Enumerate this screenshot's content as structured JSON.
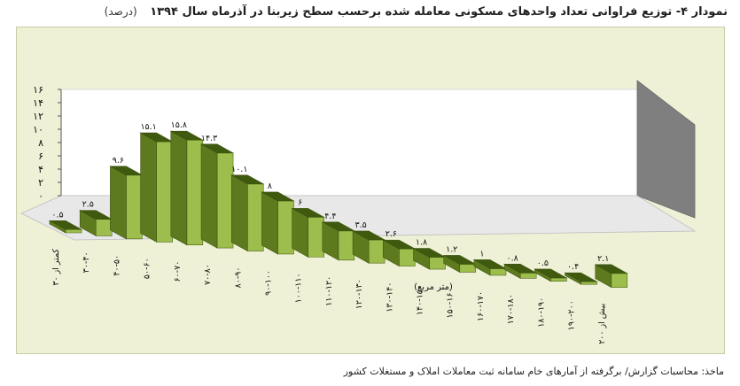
{
  "title": {
    "main": "نمودار ۴- توزیع فراوانی تعداد واحدهای مسکونی معامله شده برحسب سطح زیربنا در آذرماه سال ۱۳۹۴",
    "unit": "(درصد)"
  },
  "source": "ماخذ: محاسبات گزارش/ برگرفته از آمارهای خام سامانه ثبت معاملات املاک و مستغلات کشور",
  "chart_data": {
    "type": "bar",
    "title": "نمودار ۴- توزیع فراوانی تعداد واحدهای مسکونی معامله شده برحسب سطح زیربنا در آذرماه سال ۱۳۹۴",
    "xlabel": "(متر مربع)",
    "ylabel": "",
    "ylim": [
      0,
      16
    ],
    "yticks": [
      0,
      2,
      4,
      6,
      8,
      10,
      12,
      14,
      16
    ],
    "ytick_labels": [
      "۰",
      "۲",
      "۴",
      "۶",
      "۸",
      "۱۰",
      "۱۲",
      "۱۴",
      "۱۶"
    ],
    "grid": false,
    "categories": [
      "کمتر از ۳۰",
      "۳۰-۴۰",
      "۴۰-۵۰",
      "۵۰-۶۰",
      "۶۰-۷۰",
      "۷۰-۸۰",
      "۸۰-۹۰",
      "۹۰-۱۰۰",
      "۱۰۰-۱۱۰",
      "۱۱۰-۱۲۰",
      "۱۲۰-۱۳۰",
      "۱۳۰-۱۴۰",
      "۱۴۰-۱۵۰",
      "۱۵۰-۱۶۰",
      "۱۶۰-۱۷۰",
      "۱۷۰-۱۸۰",
      "۱۸۰-۱۹۰",
      "۱۹۰-۲۰۰",
      "بیش از ۲۰۰"
    ],
    "values": [
      0.5,
      2.5,
      9.6,
      15.1,
      15.8,
      14.3,
      10.1,
      8,
      6,
      4.4,
      3.5,
      2.6,
      1.8,
      1.2,
      1,
      0.8,
      0.5,
      0.4,
      2.1
    ],
    "value_labels": [
      "۰.۵",
      "۲.۵",
      "۹.۶",
      "۱۵.۱",
      "۱۵.۸",
      "۱۴.۳",
      "۱۰.۱",
      "۸",
      "۶",
      "۴.۴",
      "۳.۵",
      "۲.۶",
      "۱.۸",
      "۱.۲",
      "۱",
      "۰.۸",
      "۰.۵",
      "۰.۴",
      "۲.۱"
    ],
    "colors": {
      "bar_front": "#9dbe4c",
      "bar_side": "#5e7a1e",
      "bar_top": "#3f5a0e",
      "wall": "#ffffff",
      "floor": "#e8e8e8",
      "right_wall": "#7f7f7f",
      "frame_bg": "#eef1d6"
    }
  }
}
